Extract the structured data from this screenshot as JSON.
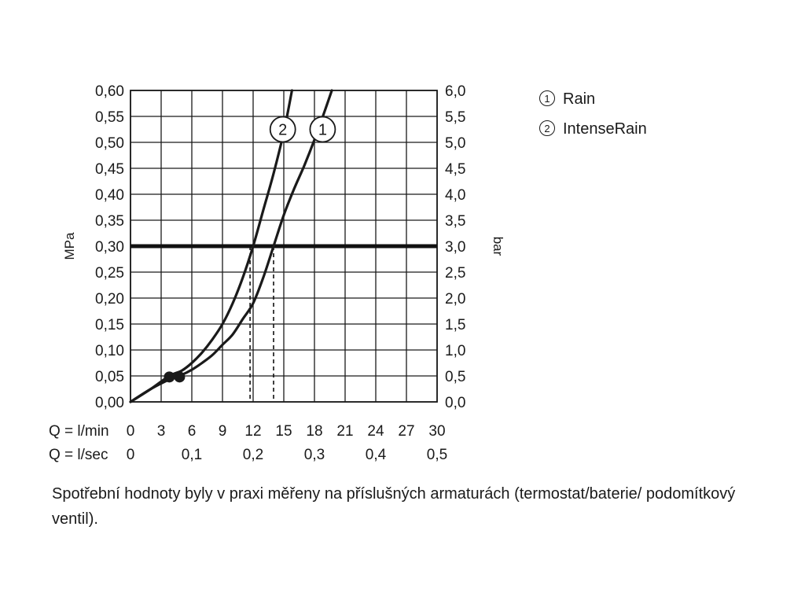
{
  "chart_data": {
    "type": "line",
    "y_left": {
      "label": "MPa",
      "ylim": [
        0,
        0.6
      ],
      "ticks": [
        "0,00",
        "0,05",
        "0,10",
        "0,15",
        "0,20",
        "0,25",
        "0,30",
        "0,35",
        "0,40",
        "0,45",
        "0,50",
        "0,55",
        "0,60"
      ]
    },
    "y_right": {
      "label": "bar",
      "ylim": [
        0,
        6
      ],
      "ticks": [
        "0,0",
        "0,5",
        "1,0",
        "1,5",
        "2,0",
        "2,5",
        "3,0",
        "3,5",
        "4,0",
        "4,5",
        "5,0",
        "5,5",
        "6,0"
      ]
    },
    "x_lmin": {
      "label": "Q = l/min",
      "xlim": [
        0,
        30
      ],
      "ticks": [
        {
          "v": 0,
          "t": "0"
        },
        {
          "v": 3,
          "t": "3"
        },
        {
          "v": 6,
          "t": "6"
        },
        {
          "v": 9,
          "t": "9"
        },
        {
          "v": 12,
          "t": "12"
        },
        {
          "v": 15,
          "t": "15"
        },
        {
          "v": 18,
          "t": "18"
        },
        {
          "v": 21,
          "t": "21"
        },
        {
          "v": 24,
          "t": "24"
        },
        {
          "v": 27,
          "t": "27"
        },
        {
          "v": 30,
          "t": "30"
        }
      ]
    },
    "x_lsec": {
      "label": "Q = l/sec",
      "ticks": [
        {
          "v": 0,
          "t": "0"
        },
        {
          "v": 6,
          "t": "0,1"
        },
        {
          "v": 12,
          "t": "0,2"
        },
        {
          "v": 18,
          "t": "0,3"
        },
        {
          "v": 24,
          "t": "0,4"
        },
        {
          "v": 30,
          "t": "0,5"
        }
      ]
    },
    "grid": true,
    "reference_line": {
      "y": 0.3
    },
    "series": [
      {
        "id": "1",
        "name": "Rain",
        "x": [
          0,
          2,
          4,
          5,
          6,
          7,
          8,
          9,
          10,
          11,
          12,
          13,
          14,
          15,
          16,
          17,
          18,
          19,
          19.7
        ],
        "y": [
          0,
          0.025,
          0.045,
          0.052,
          0.062,
          0.075,
          0.09,
          0.11,
          0.13,
          0.16,
          0.19,
          0.24,
          0.3,
          0.36,
          0.41,
          0.455,
          0.505,
          0.56,
          0.6
        ],
        "end_marker": {
          "x": 4.8,
          "y": 0.048
        },
        "label_point": {
          "x": 18.8,
          "y": 0.525
        }
      },
      {
        "id": "2",
        "name": "IntenseRain",
        "x": [
          0,
          2,
          3.8,
          5,
          6,
          7,
          8,
          9,
          10,
          11,
          12,
          13,
          14,
          15,
          15.8
        ],
        "y": [
          0,
          0.025,
          0.05,
          0.06,
          0.075,
          0.095,
          0.12,
          0.15,
          0.19,
          0.24,
          0.3,
          0.37,
          0.44,
          0.52,
          0.6
        ],
        "end_marker": {
          "x": 3.8,
          "y": 0.048
        },
        "label_point": {
          "x": 14.9,
          "y": 0.525
        }
      }
    ],
    "drop_lines": [
      {
        "x": 11.7,
        "y": 0.3
      },
      {
        "x": 14.0,
        "y": 0.3
      }
    ]
  },
  "legend": [
    {
      "num": "1",
      "name": "Rain"
    },
    {
      "num": "2",
      "name": "IntenseRain"
    }
  ],
  "caption": "Spotřební hodnoty byly v praxi měřeny na příslušných armaturách (termostat/baterie/ podomítkový ventil)."
}
